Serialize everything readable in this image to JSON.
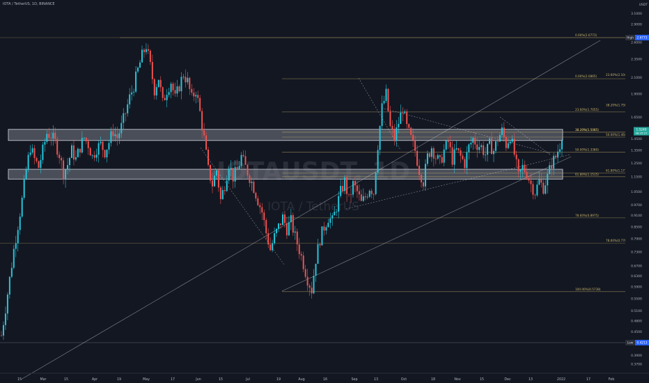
{
  "header": {
    "symbol_line": "IOTA / TetherUS, 1D, BINANCE"
  },
  "watermark": {
    "ticker": "IOTAUSDT, 1D",
    "name": "IOTA / TetherUS"
  },
  "colors": {
    "background": "#131722",
    "up": "#26c6da",
    "down": "#ef5350",
    "fib": "#c8b46a",
    "trend": "#d1d4dc",
    "zone": "#9598a1"
  },
  "chart_data": {
    "type": "candlestick",
    "y_scale": "log",
    "y_axis": {
      "top_label": "USDT",
      "ticks": [
        "3.4500",
        "3.1000",
        "2.9000",
        "2.6000",
        "2.3500",
        "2.1000",
        "1.9000",
        "1.6500",
        "1.4500",
        "1.3500",
        "1.2500",
        "1.1500",
        "1.0500",
        "0.9700",
        "0.9100",
        "0.8500",
        "0.7900",
        "0.7300",
        "0.6700",
        "0.6300",
        "0.5900",
        "0.5500",
        "0.5100",
        "0.4800",
        "0.4500",
        "0.3900",
        "0.3700"
      ],
      "tick_values": [
        3.45,
        3.1,
        2.9,
        2.6,
        2.35,
        2.1,
        1.9,
        1.65,
        1.45,
        1.35,
        1.25,
        1.15,
        1.05,
        0.97,
        0.91,
        0.85,
        0.79,
        0.73,
        0.67,
        0.63,
        0.59,
        0.55,
        0.51,
        0.48,
        0.45,
        0.39,
        0.37
      ]
    },
    "x_axis": {
      "labels": [
        "15",
        "Mar",
        "15",
        "Apr",
        "19",
        "May",
        "17",
        "Jun",
        "15",
        "Jul",
        "19",
        "Aug",
        "16",
        "Sep",
        "13",
        "Oct",
        "18",
        "Nov",
        "15",
        "Dec",
        "13",
        "2022",
        "17",
        "Feb"
      ]
    },
    "price_markers": [
      {
        "label": "High",
        "value": "2.6773"
      },
      {
        "label": "",
        "value": "1.5240",
        "sub": "08:25:27"
      },
      {
        "label": "Low",
        "value": "0.4213"
      }
    ],
    "fib_left": [
      {
        "text": "0.00%(2.6773)",
        "value": 2.6773
      },
      {
        "text": "38.20%(1.5085)",
        "value": 1.5085
      },
      {
        "text": "50.00%(1.3380)",
        "value": 1.338
      },
      {
        "text": "61.80%(1.1515)",
        "value": 1.1515
      },
      {
        "text": "78.60%(0.8975)",
        "value": 0.8975
      },
      {
        "text": "100.00%(0.5738)",
        "value": 0.5738
      }
    ],
    "fib_right": [
      {
        "text": "0.00%(2.0865)",
        "value": 2.0865
      },
      {
        "text": "23.60%(1.7055)",
        "value": 1.7055
      },
      {
        "text": "38.20%(1.5085)",
        "value": 1.5085
      },
      {
        "text": "50.00%(1.4641)",
        "value": 1.4641
      },
      {
        "text": "61.80%(1.1779)",
        "value": 1.1779
      },
      {
        "text": "78.60%(0.7701)",
        "value": 0.7701
      }
    ],
    "fib_right_extra": [
      {
        "text": "23.60%(2.1047)",
        "value": 2.1047
      },
      {
        "text": "38.20%(1.7504)",
        "value": 1.7504
      }
    ],
    "zones": [
      {
        "from": 1.435,
        "to": 1.535
      },
      {
        "from": 1.135,
        "to": 1.205
      }
    ],
    "close_path": [
      [
        0,
        0.44
      ],
      [
        3,
        0.52
      ],
      [
        6,
        0.62
      ],
      [
        9,
        0.74
      ],
      [
        12,
        0.86
      ],
      [
        15,
        1.0
      ],
      [
        18,
        1.2
      ],
      [
        21,
        1.38
      ],
      [
        24,
        1.28
      ],
      [
        27,
        1.22
      ],
      [
        30,
        1.35
      ],
      [
        33,
        1.5
      ],
      [
        36,
        1.48
      ],
      [
        39,
        1.42
      ],
      [
        42,
        1.32
      ],
      [
        45,
        1.18
      ],
      [
        48,
        1.24
      ],
      [
        51,
        1.35
      ],
      [
        54,
        1.28
      ],
      [
        57,
        1.38
      ],
      [
        60,
        1.46
      ],
      [
        63,
        1.4
      ],
      [
        66,
        1.3
      ],
      [
        69,
        1.37
      ],
      [
        72,
        1.4
      ],
      [
        75,
        1.34
      ],
      [
        78,
        1.42
      ],
      [
        81,
        1.52
      ],
      [
        84,
        1.46
      ],
      [
        87,
        1.56
      ],
      [
        90,
        1.7
      ],
      [
        93,
        1.86
      ],
      [
        96,
        2.0
      ],
      [
        99,
        2.2
      ],
      [
        102,
        2.4
      ],
      [
        105,
        2.55
      ],
      [
        108,
        2.25
      ],
      [
        111,
        1.95
      ],
      [
        114,
        2.1
      ],
      [
        117,
        1.8
      ],
      [
        120,
        1.95
      ],
      [
        123,
        2.05
      ],
      [
        126,
        1.85
      ],
      [
        129,
        2.0
      ],
      [
        132,
        2.15
      ],
      [
        135,
        2.05
      ],
      [
        138,
        1.85
      ],
      [
        141,
        1.95
      ],
      [
        144,
        1.7
      ],
      [
        147,
        1.45
      ],
      [
        150,
        1.2
      ],
      [
        153,
        1.1
      ],
      [
        156,
        1.2
      ],
      [
        159,
        1.0
      ],
      [
        162,
        1.1
      ],
      [
        165,
        1.25
      ],
      [
        168,
        1.15
      ],
      [
        171,
        1.2
      ],
      [
        174,
        1.3
      ],
      [
        177,
        1.22
      ],
      [
        180,
        1.15
      ],
      [
        183,
        1.08
      ],
      [
        186,
        1.0
      ],
      [
        189,
        0.93
      ],
      [
        192,
        0.82
      ],
      [
        195,
        0.74
      ],
      [
        198,
        0.8
      ],
      [
        201,
        0.85
      ],
      [
        204,
        0.9
      ],
      [
        207,
        0.84
      ],
      [
        210,
        0.88
      ],
      [
        213,
        0.8
      ],
      [
        216,
        0.74
      ],
      [
        219,
        0.68
      ],
      [
        222,
        0.62
      ],
      [
        225,
        0.58
      ],
      [
        228,
        0.7
      ],
      [
        231,
        0.79
      ],
      [
        234,
        0.85
      ],
      [
        237,
        0.9
      ],
      [
        240,
        0.88
      ],
      [
        243,
        0.96
      ],
      [
        246,
        1.05
      ],
      [
        249,
        1.12
      ],
      [
        252,
        1.0
      ],
      [
        255,
        1.1
      ],
      [
        258,
        1.05
      ],
      [
        261,
        0.98
      ],
      [
        264,
        1.02
      ],
      [
        267,
        1.08
      ],
      [
        270,
        1.05
      ],
      [
        273,
        1.4
      ],
      [
        276,
        1.75
      ],
      [
        279,
        1.9
      ],
      [
        282,
        1.55
      ],
      [
        285,
        1.45
      ],
      [
        288,
        1.6
      ],
      [
        291,
        1.75
      ],
      [
        294,
        1.55
      ],
      [
        297,
        1.45
      ],
      [
        300,
        1.35
      ],
      [
        303,
        1.2
      ],
      [
        306,
        1.12
      ],
      [
        309,
        1.3
      ],
      [
        312,
        1.38
      ],
      [
        315,
        1.3
      ],
      [
        318,
        1.25
      ],
      [
        321,
        1.35
      ],
      [
        324,
        1.42
      ],
      [
        327,
        1.28
      ],
      [
        330,
        1.35
      ],
      [
        333,
        1.3
      ],
      [
        336,
        1.25
      ],
      [
        339,
        1.38
      ],
      [
        342,
        1.45
      ],
      [
        345,
        1.4
      ],
      [
        348,
        1.38
      ],
      [
        351,
        1.32
      ],
      [
        354,
        1.4
      ],
      [
        357,
        1.35
      ],
      [
        360,
        1.45
      ],
      [
        363,
        1.52
      ],
      [
        366,
        1.4
      ],
      [
        369,
        1.48
      ],
      [
        372,
        1.32
      ],
      [
        375,
        1.15
      ],
      [
        378,
        1.22
      ],
      [
        381,
        1.18
      ],
      [
        384,
        1.1
      ],
      [
        387,
        1.05
      ],
      [
        390,
        1.12
      ],
      [
        393,
        1.08
      ],
      [
        396,
        1.15
      ],
      [
        399,
        1.25
      ],
      [
        402,
        1.3
      ],
      [
        405,
        1.4
      ],
      [
        407,
        1.524
      ]
    ],
    "total_days": 407
  }
}
